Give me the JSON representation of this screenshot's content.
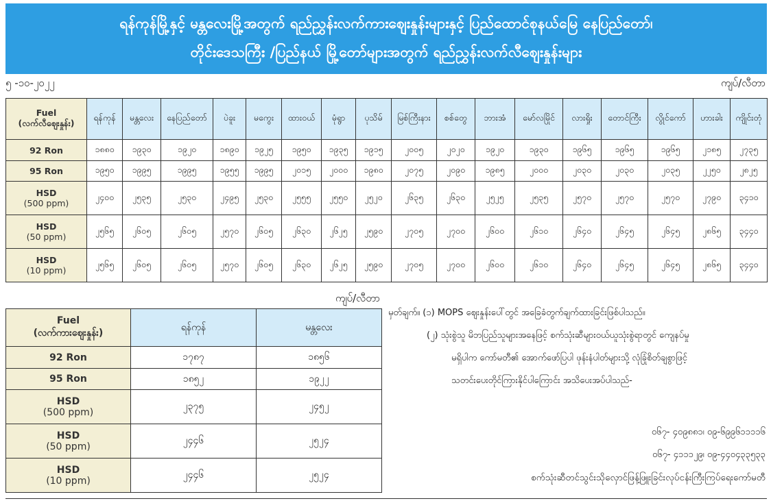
{
  "header": {
    "title_line1": "ရန်ကုန်မြို့နှင့် မန္တလေးမြို့အတွက် ရည်ညွှန်းလက်ကားဈေးနှုန်းများနှင့် ပြည်ထောင်စုနယ်မြေ နေပြည်တော်၊",
    "title_line2": "တိုင်းဒေသကြီး /ပြည်နယ် မြို့တော်များအတွက် ရည်ညွှန်းလက်လီဈေးနှုန်းများ",
    "date": "၅ -၁၀-၂၀၂၂",
    "unit": "ကျပ်/လီတာ",
    "color": "#2e9ee2"
  },
  "retail": {
    "fuel_header": "Fuel",
    "fuel_sub": "(လက်လီဈေးနှုန်း)",
    "cities": [
      "ရန်ကုန်",
      "မန္တလေး",
      "နေပြည်တော်",
      "ပဲခူး",
      "မကွေး",
      "ထားဝယ်",
      "မုံရွာ",
      "ပုသိမ်",
      "မြစ်ကြီးနား",
      "စစ်တွေ",
      "ဘားအံ",
      "မော်လမြိုင်",
      "လားရှိုး",
      "တောင်ကြီး",
      "လွိုင်ကော်",
      "ဟားခါး",
      "ကျိုင်းတုံ"
    ],
    "rows": [
      {
        "fuel": "92 Ron",
        "sub": "",
        "values": [
          "၁၈၈၀",
          "၁၉၃၀",
          "၁၉၂၀",
          "၁၈၉၀",
          "၁၉၂၅",
          "၁၉၅၀",
          "၁၉၃၅",
          "၁၉၁၅",
          "၂၀၀၅",
          "၂၀၂၀",
          "၁၉၂၀",
          "၁၉၃၀",
          "၁၉၆၅",
          "၁၉၆၅",
          "၁၉၆၅",
          "၂၁၈၅",
          "၂၇၃၅"
        ]
      },
      {
        "fuel": "95 Ron",
        "sub": "",
        "values": [
          "၁၉၅၀",
          "၁၉၉၅",
          "၁၉၉၅",
          "၁၉၅၅",
          "၁၉၉၅",
          "၂၀၁၅",
          "၂၀၀၀",
          "၁၉၈၀",
          "၂၀၇၅",
          "၂၀၉၀",
          "၁၉၈၅",
          "၂၀၀၀",
          "၂၀၃၀",
          "၂၀၃၀",
          "၂၀၃၅",
          "၂၂၅၀",
          "၂၈၂၅"
        ]
      },
      {
        "fuel": "HSD",
        "sub": "(500 ppm)",
        "values": [
          "၂၄၀၀",
          "၂၅၃၅",
          "၂၅၃၀",
          "၂၄၉၅",
          "၂၅၃၀",
          "၂၅၅၅",
          "၂၅၅၀",
          "၂၅၂၀",
          "၂၆၃၅",
          "၂၆၃၀",
          "၂၅၂၅",
          "၂၅၃၅",
          "၂၅၇၀",
          "၂၅၇၀",
          "၂၅၇၀",
          "၂၇၉၀",
          "၃၄၁၀"
        ]
      },
      {
        "fuel": "HSD",
        "sub": "(50 ppm)",
        "values": [
          "၂၅၆၅",
          "၂၆၀၅",
          "၂၆၀၅",
          "၂၅၇၀",
          "၂၆၀၅",
          "၂၆၃၀",
          "၂၆၂၅",
          "၂၅၉၀",
          "၂၇၀၅",
          "၂၇၀၀",
          "၂၆၀၀",
          "၂၆၁၀",
          "၂၆၄၀",
          "၂၆၄၅",
          "၂၆၄၅",
          "၂၈၆၅",
          "၃၄၄၀"
        ]
      },
      {
        "fuel": "HSD",
        "sub": "(10 ppm)",
        "values": [
          "၂၅၆၅",
          "၂၆၀၅",
          "၂၆၀၅",
          "၂၅၇၀",
          "၂၆၀၅",
          "၂၆၃၀",
          "၂၆၂၅",
          "၂၅၉၀",
          "၂၇၀၅",
          "၂၇၀၀",
          "၂၆၀၀",
          "၂၆၁၀",
          "၂၆၄၀",
          "၂၆၄၅",
          "၂၆၄၅",
          "၂၈၆၅",
          "၃၄၄၀"
        ]
      }
    ]
  },
  "wholesale": {
    "unit": "ကျပ်/လီတာ",
    "fuel_header": "Fuel",
    "fuel_sub": "(လက်ကားဈေးနှုန်း)",
    "cities": [
      "ရန်ကုန်",
      "မန္တလေး"
    ],
    "rows": [
      {
        "fuel": "92 Ron",
        "sub": "",
        "values": [
          "၁၇၈၇",
          "၁၈၅၆"
        ]
      },
      {
        "fuel": "95 Ron",
        "sub": "",
        "values": [
          "၁၈၅၂",
          "၁၉၂၂"
        ]
      },
      {
        "fuel": "HSD",
        "sub": "(500 ppm)",
        "values": [
          "၂၃၇၅",
          "၂၄၅၂"
        ]
      },
      {
        "fuel": "HSD",
        "sub": "(50 ppm)",
        "values": [
          "၂၄၄၆",
          "၂၅၂၄"
        ]
      },
      {
        "fuel": "HSD",
        "sub": "(10 ppm)",
        "values": [
          "၂၄၄၆",
          "၂၅၂၄"
        ]
      }
    ]
  },
  "notes": {
    "note1": "မှတ်ချက်။ (၁)  MOPS ဈေးနှုန်းပေါ်တွင် အခြေခံတွက်ချက်ထားခြင်းဖြစ်ပါသည်။",
    "note2_l1": "(၂)  သုံးစွဲသူ မိဘပြည်သူများအနေဖြင့် စက်သုံးဆီများဝယ်ယူသုံးစွဲရာတွင် ကျေနပ်မှု",
    "note2_l2": "မရှိပါက  ကော်မတီ၏ အောက်ဖော်ပြပါ ဖုန်းနံပါတ်များသို့ လုံခြုံစိတ်ချစွာဖြင့်",
    "note2_l3": "သတင်းပေးတိုင်ကြားနိုင်ပါကြောင်း အသိပေးအပ်ပါသည်-",
    "phone1": "၀၆၇- ၄၀၉၈၈၁၊ ၀၉-၆၉၉၆၁၁၁၁၆",
    "phone2": "၀၆၇-  ၄၁၁၁၂၉၊ ၀၉-၄၄၀၄၃၃၅၃၃",
    "committee": "စက်သုံးဆီတင်သွင်းသိုလှောင်ဖြန့်ဖြူးခြင်းလုပ်ငန်းကြီးကြပ်ရေးကော်မတီ"
  }
}
